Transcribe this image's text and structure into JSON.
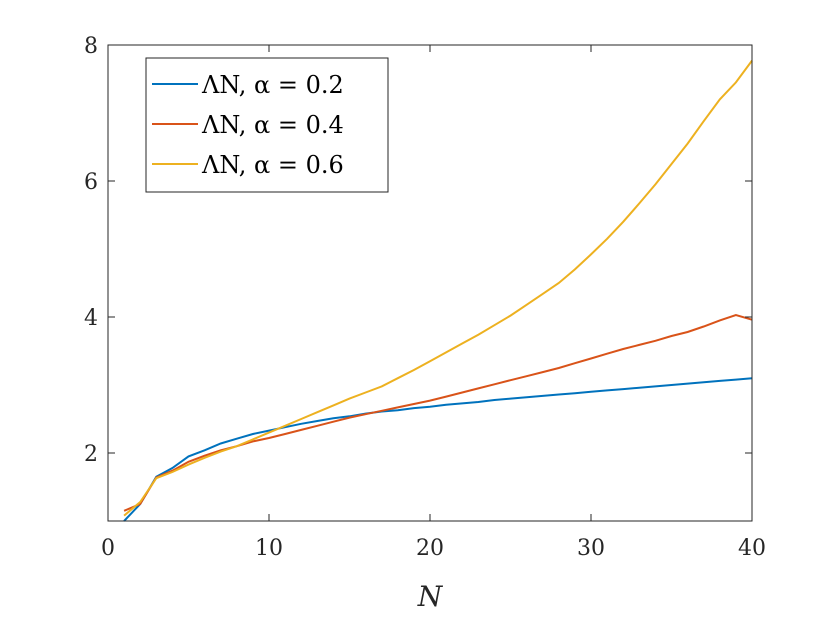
{
  "chart_data": {
    "type": "line",
    "title": "",
    "xlabel": "N",
    "ylabel": "",
    "xlim": [
      0,
      40
    ],
    "ylim": [
      1,
      8
    ],
    "xticks": [
      0,
      10,
      20,
      30,
      40
    ],
    "yticks": [
      2,
      4,
      6,
      8
    ],
    "grid": false,
    "legend_position": "top-left",
    "series": [
      {
        "name": "ΛN, α = 0.2",
        "color": "#0072BD",
        "x": [
          1,
          2,
          3,
          4,
          5,
          6,
          7,
          8,
          9,
          10,
          11,
          12,
          13,
          14,
          15,
          16,
          17,
          18,
          19,
          20,
          21,
          22,
          23,
          24,
          25,
          26,
          27,
          28,
          29,
          30,
          31,
          32,
          33,
          34,
          35,
          36,
          37,
          38,
          39,
          40
        ],
        "y": [
          1.0,
          1.25,
          1.65,
          1.78,
          1.95,
          2.04,
          2.14,
          2.21,
          2.28,
          2.33,
          2.38,
          2.43,
          2.47,
          2.51,
          2.54,
          2.58,
          2.61,
          2.63,
          2.66,
          2.68,
          2.71,
          2.73,
          2.75,
          2.78,
          2.8,
          2.82,
          2.84,
          2.86,
          2.88,
          2.9,
          2.92,
          2.94,
          2.96,
          2.98,
          3.0,
          3.02,
          3.04,
          3.06,
          3.08,
          3.1
        ]
      },
      {
        "name": "ΛN, α = 0.4",
        "color": "#D95319",
        "x": [
          1,
          2,
          3,
          4,
          5,
          6,
          7,
          8,
          9,
          10,
          11,
          12,
          13,
          14,
          15,
          16,
          17,
          18,
          19,
          20,
          21,
          22,
          23,
          24,
          25,
          26,
          27,
          28,
          29,
          30,
          31,
          32,
          33,
          34,
          35,
          36,
          37,
          38,
          39,
          40
        ],
        "y": [
          1.15,
          1.25,
          1.64,
          1.74,
          1.87,
          1.96,
          2.04,
          2.1,
          2.17,
          2.22,
          2.28,
          2.34,
          2.4,
          2.46,
          2.52,
          2.57,
          2.62,
          2.67,
          2.72,
          2.77,
          2.83,
          2.89,
          2.95,
          3.01,
          3.07,
          3.13,
          3.19,
          3.25,
          3.32,
          3.39,
          3.46,
          3.53,
          3.59,
          3.65,
          3.72,
          3.78,
          3.86,
          3.95,
          4.03,
          3.96
        ]
      },
      {
        "name": "ΛN, α = 0.6",
        "color": "#EDB120",
        "x": [
          1,
          2,
          3,
          4,
          5,
          6,
          7,
          8,
          9,
          10,
          11,
          12,
          13,
          14,
          15,
          16,
          17,
          18,
          19,
          20,
          21,
          22,
          23,
          24,
          25,
          26,
          27,
          28,
          29,
          30,
          31,
          32,
          33,
          34,
          35,
          36,
          37,
          38,
          39,
          40
        ],
        "y": [
          1.08,
          1.28,
          1.63,
          1.72,
          1.83,
          1.93,
          2.02,
          2.1,
          2.2,
          2.3,
          2.4,
          2.5,
          2.6,
          2.7,
          2.8,
          2.89,
          2.98,
          3.1,
          3.22,
          3.35,
          3.48,
          3.61,
          3.74,
          3.88,
          4.02,
          4.18,
          4.34,
          4.5,
          4.7,
          4.92,
          5.15,
          5.4,
          5.67,
          5.95,
          6.25,
          6.55,
          6.88,
          7.2,
          7.45,
          7.77
        ]
      }
    ]
  }
}
